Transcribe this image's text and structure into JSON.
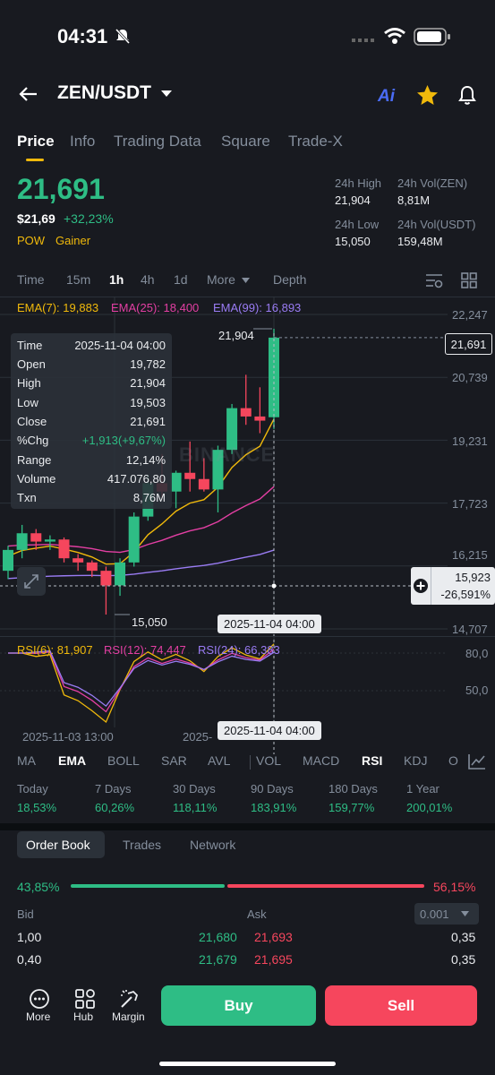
{
  "status_bar": {
    "time": "04:31"
  },
  "header": {
    "pair": "ZEN/USDT",
    "ai_label": "Ai"
  },
  "tabs": [
    "Price",
    "Info",
    "Trading Data",
    "Square",
    "Trade-X"
  ],
  "price": {
    "last": "21,691",
    "usd": "$21,69",
    "change": "+32,23%",
    "tag_pow": "POW",
    "tag_gainer": "Gainer"
  },
  "stats": {
    "high_label": "24h High",
    "high": "21,904",
    "vol_base_label": "24h Vol(ZEN)",
    "vol_base": "8,81M",
    "low_label": "24h Low",
    "low": "15,050",
    "vol_quote_label": "24h Vol(USDT)",
    "vol_quote": "159,48M"
  },
  "intervals": [
    "Time",
    "15m",
    "1h",
    "4h",
    "1d",
    "More",
    "Depth"
  ],
  "ema": {
    "ema7": "EMA(7): 19,883",
    "ema25": "EMA(25): 18,400",
    "ema99": "EMA(99): 16,893"
  },
  "tooltip": [
    {
      "k": "Time",
      "v": "2025-11-04 04:00"
    },
    {
      "k": "Open",
      "v": "19,782"
    },
    {
      "k": "High",
      "v": "21,904"
    },
    {
      "k": "Low",
      "v": "19,503"
    },
    {
      "k": "Close",
      "v": "21,691"
    },
    {
      "k": "%Chg",
      "v": "+1,913(+9,67%)"
    },
    {
      "k": "Range",
      "v": "12,14%"
    },
    {
      "k": "Volume",
      "v": "417.076,80"
    },
    {
      "k": "Txn",
      "v": "8,76M"
    }
  ],
  "price_axis": [
    "22,247",
    "20,739",
    "19,231",
    "17,723",
    "16,215",
    "14,707"
  ],
  "chart_labels": {
    "high_marker": "21,904",
    "low_marker": "15,050",
    "current_price": "21,691",
    "cross_price": "15,923",
    "cross_pct": "-26,591%",
    "crosshair_time": "2025-11-04 04:00",
    "watermark": "BINANCE"
  },
  "rsi": {
    "rsi6": "RSI(6): 81,907",
    "rsi12": "RSI(12): 74,447",
    "rsi24": "RSI(24): 66,383",
    "axis_top": "80,0",
    "axis_mid": "50,0",
    "time_left": "2025-11-03 13:00",
    "time_partial": "2025-",
    "time_cross": "2025-11-04 04:00"
  },
  "indicator_tabs": [
    "MA",
    "EMA",
    "BOLL",
    "SAR",
    "AVL",
    "VOL",
    "MACD",
    "RSI",
    "KDJ",
    "O"
  ],
  "performance": [
    {
      "label": "Today",
      "value": "18,53%"
    },
    {
      "label": "7 Days",
      "value": "60,26%"
    },
    {
      "label": "30 Days",
      "value": "118,11%"
    },
    {
      "label": "90 Days",
      "value": "183,91%"
    },
    {
      "label": "180 Days",
      "value": "159,77%"
    },
    {
      "label": "1 Year",
      "value": "200,01%"
    }
  ],
  "order_book": {
    "tabs": [
      "Order Book",
      "Trades",
      "Network"
    ],
    "bid_pct": "43,85%",
    "ask_pct": "56,15%",
    "bid_ratio": 0.4385,
    "bid_label": "Bid",
    "ask_label": "Ask",
    "precision": "0.001",
    "rows": [
      {
        "bid_qty": "1,00",
        "bid_price": "21,680",
        "ask_price": "21,693",
        "ask_qty": "0,35"
      },
      {
        "bid_qty": "0,40",
        "bid_price": "21,679",
        "ask_price": "21,695",
        "ask_qty": "0,35"
      }
    ]
  },
  "bottom": {
    "more": "More",
    "hub": "Hub",
    "margin": "Margin",
    "buy": "Buy",
    "sell": "Sell"
  },
  "colors": {
    "up": "#2ebd85",
    "down": "#f6465d",
    "accent": "#f0b90b",
    "ema7": "#f0b90b",
    "ema25": "#e33fa3",
    "ema99": "#9a7cf4",
    "background": "#181a20"
  },
  "chart_data": {
    "type": "candlestick",
    "interval": "1h",
    "y_axis_ticks": [
      22.247,
      20.739,
      19.231,
      17.723,
      16.215,
      14.707
    ],
    "selected_candle": {
      "time": "2025-11-04 04:00",
      "open": 19.782,
      "high": 21.904,
      "low": 19.503,
      "close": 21.691
    },
    "candles": [
      {
        "o": 16.1,
        "h": 16.7,
        "l": 15.9,
        "c": 16.6
      },
      {
        "o": 16.6,
        "h": 17.2,
        "l": 16.4,
        "c": 17.0
      },
      {
        "o": 17.0,
        "h": 17.1,
        "l": 16.6,
        "c": 16.8
      },
      {
        "o": 16.8,
        "h": 16.95,
        "l": 16.6,
        "c": 16.85
      },
      {
        "o": 16.85,
        "h": 16.9,
        "l": 16.3,
        "c": 16.4
      },
      {
        "o": 16.4,
        "h": 16.5,
        "l": 16.1,
        "c": 16.3
      },
      {
        "o": 16.3,
        "h": 16.35,
        "l": 15.95,
        "c": 16.1
      },
      {
        "o": 16.1,
        "h": 16.2,
        "l": 15.05,
        "c": 15.75
      },
      {
        "o": 15.75,
        "h": 16.4,
        "l": 15.5,
        "c": 16.3
      },
      {
        "o": 16.3,
        "h": 17.5,
        "l": 16.2,
        "c": 17.4
      },
      {
        "o": 17.4,
        "h": 18.4,
        "l": 17.3,
        "c": 18.2
      },
      {
        "o": 18.2,
        "h": 18.9,
        "l": 17.8,
        "c": 18.0
      },
      {
        "o": 18.0,
        "h": 18.5,
        "l": 17.6,
        "c": 18.45
      },
      {
        "o": 18.45,
        "h": 19.2,
        "l": 18.0,
        "c": 18.3
      },
      {
        "o": 18.3,
        "h": 18.8,
        "l": 18.0,
        "c": 18.05
      },
      {
        "o": 18.05,
        "h": 19.1,
        "l": 17.5,
        "c": 19.0
      },
      {
        "o": 19.0,
        "h": 20.1,
        "l": 18.9,
        "c": 20.0
      },
      {
        "o": 20.0,
        "h": 20.8,
        "l": 19.6,
        "c": 19.8
      },
      {
        "o": 19.8,
        "h": 20.5,
        "l": 19.4,
        "c": 19.7
      },
      {
        "o": 19.782,
        "h": 21.904,
        "l": 19.503,
        "c": 21.691
      }
    ],
    "rsi_axis": [
      80,
      50
    ]
  }
}
